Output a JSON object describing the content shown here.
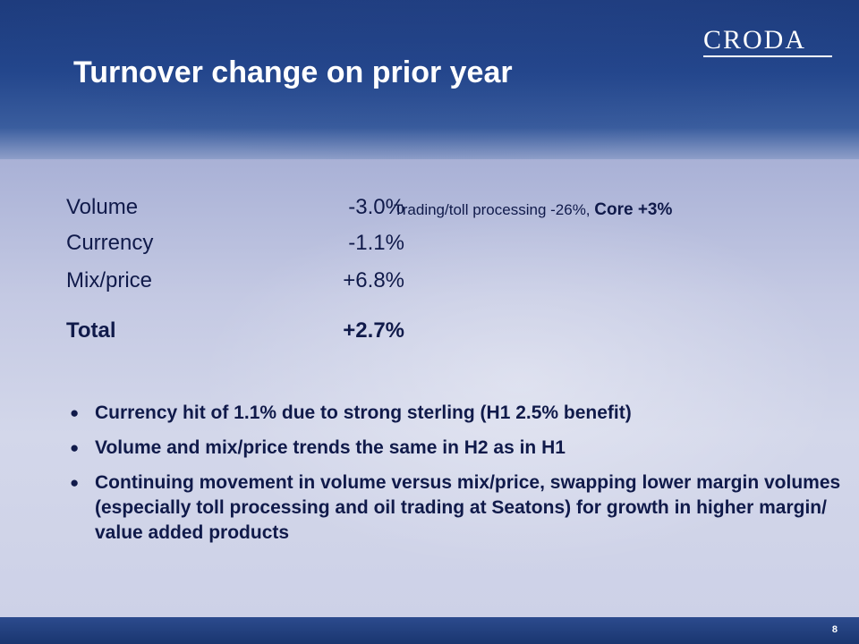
{
  "slide": {
    "title": "Turnover change on prior year",
    "logo_text": "CRODA",
    "page_number": "8"
  },
  "table": {
    "rows": [
      {
        "label": "Volume",
        "value": "-3.0%",
        "note": "Trading/toll processing -26%, ",
        "note_strong": "Core +3%"
      },
      {
        "label": "Currency",
        "value": "-1.1%"
      },
      {
        "label": "Mix/price",
        "value": "+6.8%"
      }
    ],
    "total": {
      "label": "Total",
      "value": "+2.7%"
    }
  },
  "bullets": [
    "Currency hit of 1.1% due to strong sterling (H1 2.5% benefit)",
    "Volume and mix/price trends the same in H2 as in H1",
    "Continuing movement in volume versus mix/price, swapping lower margin volumes (especially toll processing and oil trading at Seatons) for growth in higher margin/ value added products"
  ],
  "bullet_glyph": "●",
  "colors": {
    "header_blue": "#23468c",
    "text_navy": "#101a4a",
    "background": "#c9cde3"
  }
}
